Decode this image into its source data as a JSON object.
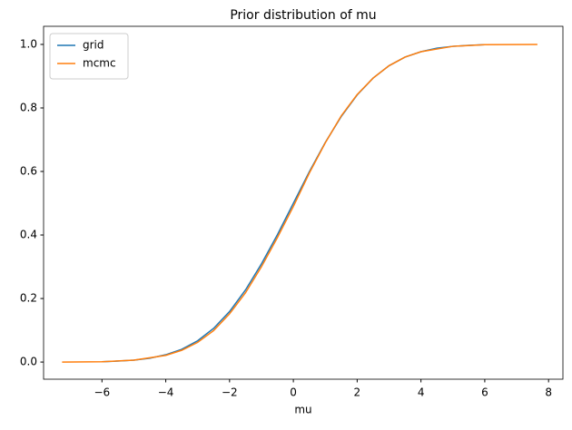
{
  "chart_data": {
    "type": "line",
    "title": "Prior distribution of mu",
    "xlabel": "mu",
    "series": [
      {
        "name": "grid",
        "color": "#1f77b4",
        "x": [
          -6,
          -5.5,
          -5,
          -4.5,
          -4,
          -3.5,
          -3,
          -2.5,
          -2,
          -1.5,
          -1,
          -0.5,
          0,
          0.5,
          1,
          1.5,
          2,
          2.5,
          3,
          3.5,
          4,
          4.5,
          5,
          5.5,
          6
        ],
        "values": [
          0.001,
          0.003,
          0.006,
          0.012,
          0.023,
          0.04,
          0.067,
          0.106,
          0.159,
          0.227,
          0.309,
          0.401,
          0.5,
          0.599,
          0.691,
          0.773,
          0.841,
          0.894,
          0.933,
          0.96,
          0.977,
          0.988,
          0.994,
          0.997,
          0.999
        ]
      },
      {
        "name": "mcmc",
        "color": "#ff7f0e",
        "x": [
          -7.25,
          -6,
          -5,
          -4,
          -3.5,
          -3,
          -2.5,
          -2,
          -1.5,
          -1,
          -0.5,
          0,
          0.5,
          1,
          1.5,
          2,
          2.5,
          3,
          3.5,
          4,
          5,
          6,
          7.65
        ],
        "values": [
          0,
          0.001,
          0.006,
          0.021,
          0.037,
          0.062,
          0.099,
          0.152,
          0.218,
          0.3,
          0.392,
          0.49,
          0.595,
          0.69,
          0.775,
          0.842,
          0.894,
          0.933,
          0.96,
          0.977,
          0.994,
          0.999,
          1.0
        ]
      }
    ],
    "xlim": [
      -7.83,
      8.45
    ],
    "ylim": [
      -0.054,
      1.057
    ],
    "xticks": [
      {
        "value": -6,
        "label": "−6"
      },
      {
        "value": -4,
        "label": "−4"
      },
      {
        "value": -2,
        "label": "−2"
      },
      0,
      2,
      4,
      6,
      8
    ],
    "yticks": [
      {
        "value": 0,
        "label": "0.0"
      },
      {
        "value": 0.2,
        "label": "0.2"
      },
      {
        "value": 0.4,
        "label": "0.4"
      },
      {
        "value": 0.6,
        "label": "0.6"
      },
      {
        "value": 0.8,
        "label": "0.8"
      },
      {
        "value": 1.0,
        "label": "1.0"
      }
    ],
    "grid": false,
    "legend": "upper-left"
  }
}
